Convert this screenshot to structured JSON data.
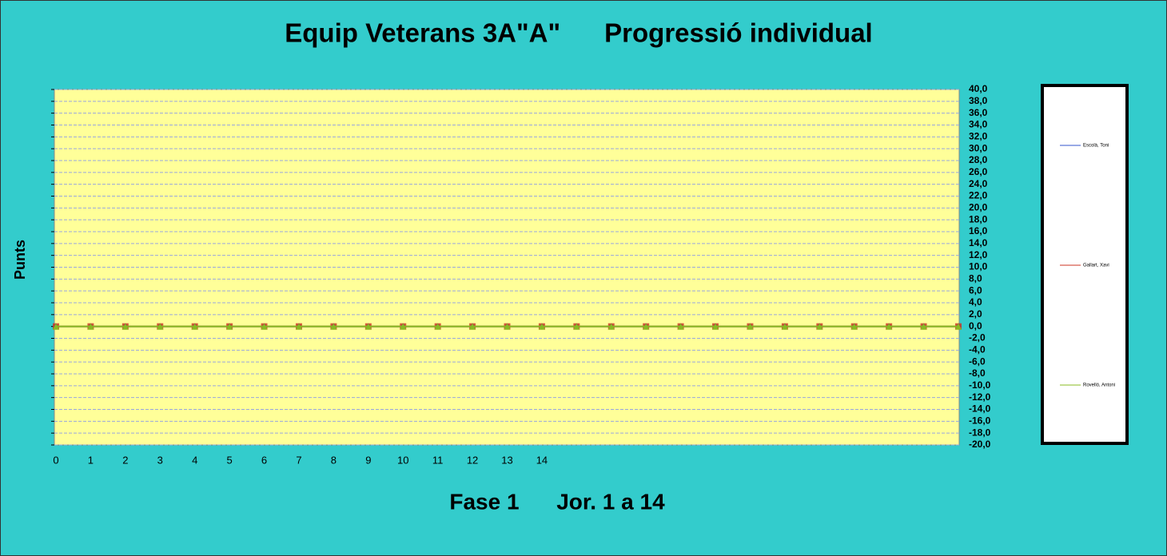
{
  "chart_data": {
    "type": "line",
    "title": "Equip Veterans 3A\"A\"      Progressió individual",
    "x_label": "Fase 1      Jor. 1 a 14",
    "y_label": "Punts",
    "categories": [
      "0",
      "1",
      "2",
      "3",
      "4",
      "5",
      "6",
      "7",
      "8",
      "9",
      "10",
      "11",
      "12",
      "13",
      "14",
      null,
      null,
      null,
      null,
      null,
      null,
      null,
      null,
      null,
      null,
      null,
      null
    ],
    "series": [
      {
        "name": "Escolà, Toni",
        "color": "#3355cc",
        "values": [
          0,
          0,
          0,
          0,
          0,
          0,
          0,
          0,
          0,
          0,
          0,
          0,
          0,
          0,
          0,
          0,
          0,
          0,
          0,
          0,
          0,
          0,
          0,
          0,
          0,
          0,
          0
        ]
      },
      {
        "name": "Gallart, Xavi",
        "color": "#cc3322",
        "values": [
          0,
          0,
          0,
          0,
          0,
          0,
          0,
          0,
          0,
          0,
          0,
          0,
          0,
          0,
          0,
          0,
          0,
          0,
          0,
          0,
          0,
          0,
          0,
          0,
          0,
          0,
          0
        ]
      },
      {
        "name": "Rovelló, Antoni",
        "color": "#88bb22",
        "values": [
          0,
          0,
          0,
          0,
          0,
          0,
          0,
          0,
          0,
          0,
          0,
          0,
          0,
          0,
          0,
          0,
          0,
          0,
          0,
          0,
          0,
          0,
          0,
          0,
          0,
          0,
          0
        ]
      }
    ],
    "ylim": [
      -20,
      40
    ],
    "yticks": [
      {
        "value": -20,
        "label": "-20,0"
      },
      {
        "value": -18,
        "label": "-18,0"
      },
      {
        "value": -16,
        "label": "-16,0"
      },
      {
        "value": -14,
        "label": "-14,0"
      },
      {
        "value": -12,
        "label": "-12,0"
      },
      {
        "value": -10,
        "label": "-10,0"
      },
      {
        "value": -8,
        "label": "-8,0"
      },
      {
        "value": -6,
        "label": "-6,0"
      },
      {
        "value": -4,
        "label": "-4,0"
      },
      {
        "value": -2,
        "label": "-2,0"
      },
      {
        "value": 0,
        "label": "0,0"
      },
      {
        "value": 2,
        "label": "2,0"
      },
      {
        "value": 4,
        "label": "4,0"
      },
      {
        "value": 6,
        "label": "6,0"
      },
      {
        "value": 8,
        "label": "8,0"
      },
      {
        "value": 10,
        "label": "10,0"
      },
      {
        "value": 12,
        "label": "12,0"
      },
      {
        "value": 14,
        "label": "14,0"
      },
      {
        "value": 16,
        "label": "16,0"
      },
      {
        "value": 18,
        "label": "18,0"
      },
      {
        "value": 20,
        "label": "20,0"
      },
      {
        "value": 22,
        "label": "22,0"
      },
      {
        "value": 24,
        "label": "24,0"
      },
      {
        "value": 26,
        "label": "26,0"
      },
      {
        "value": 28,
        "label": "28,0"
      },
      {
        "value": 30,
        "label": "30,0"
      },
      {
        "value": 32,
        "label": "32,0"
      },
      {
        "value": 34,
        "label": "34,0"
      },
      {
        "value": 36,
        "label": "36,0"
      },
      {
        "value": 38,
        "label": "38,0"
      },
      {
        "value": 40,
        "label": "40,0"
      }
    ],
    "grid": true,
    "legend": "right"
  }
}
